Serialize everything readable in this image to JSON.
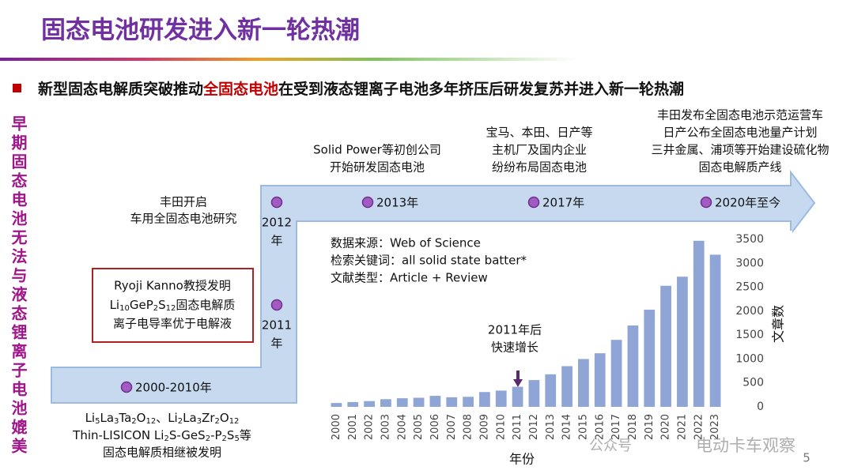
{
  "title": "固态电池研发进入新一轮热潮",
  "bullet": {
    "parts": [
      "新型固态电解质突破推动",
      "全固态电池",
      "在受到液态锂离子电池多年挤压后研发复苏并进入新一轮热潮"
    ]
  },
  "side_label": "早期固态电池无法与液态锂离子电池媲美",
  "timeline": {
    "stages": [
      {
        "lines": [
          "2000-2010年"
        ]
      },
      {
        "lines": [
          "2011",
          "年"
        ]
      },
      {
        "lines": [
          "2012",
          "年"
        ]
      },
      {
        "lines": [
          "2013年"
        ]
      },
      {
        "lines": [
          "2017年"
        ]
      },
      {
        "lines": [
          "2020年至今"
        ]
      }
    ],
    "events": {
      "toyota_start": [
        "丰田开启",
        "车用全固态电池研究"
      ],
      "kanno": {
        "line1": "Ryoji Kanno教授发明",
        "formula": [
          {
            "text": "Li"
          },
          {
            "sub": "10"
          },
          {
            "text": "GeP"
          },
          {
            "sub": "2"
          },
          {
            "text": "S"
          },
          {
            "sub": "12"
          },
          {
            "text": "固态电解质"
          }
        ],
        "line3": "离子电导率优于电解液"
      },
      "early": {
        "formula1": [
          {
            "text": "Li"
          },
          {
            "sub": "5"
          },
          {
            "text": "La"
          },
          {
            "sub": "3"
          },
          {
            "text": "Ta"
          },
          {
            "sub": "2"
          },
          {
            "text": "O"
          },
          {
            "sub": "12"
          },
          {
            "text": "、Li"
          },
          {
            "sub": "2"
          },
          {
            "text": "La"
          },
          {
            "sub": "3"
          },
          {
            "text": "Zr"
          },
          {
            "sub": "2"
          },
          {
            "text": "O"
          },
          {
            "sub": "12"
          }
        ],
        "formula2": [
          {
            "text": "Thin-LISICON Li"
          },
          {
            "sub": "2"
          },
          {
            "text": "S-GeS"
          },
          {
            "sub": "2"
          },
          {
            "text": "-P"
          },
          {
            "sub": "2"
          },
          {
            "text": "S"
          },
          {
            "sub": "5"
          },
          {
            "text": "等"
          }
        ],
        "line3": "固态电解质相继被发明"
      },
      "startups": [
        "Solid Power等初创公司",
        "开始研发固态电池"
      ],
      "oems": [
        "宝马、本田、日产等",
        "主机厂及国内企业",
        "纷纷布局固态电池"
      ],
      "recent": [
        "丰田发布全固态电池示范运营车",
        "日产公布全固态电池量产计划",
        "三井金属、浦项等开始建设硫化物",
        "固态电解质产线"
      ]
    }
  },
  "chart_data": {
    "type": "bar",
    "notes": [
      "数据来源：Web of Science",
      "检索关键词：all solid state batter*",
      "文献类型：Article + Review"
    ],
    "annotation": [
      "2011年后",
      "快速增长"
    ],
    "x_label": "年份",
    "y_label": "文章数",
    "categories": [
      "2000",
      "2001",
      "2002",
      "2003",
      "2004",
      "2005",
      "2006",
      "2007",
      "2008",
      "2009",
      "2010",
      "2011",
      "2012",
      "2013",
      "2014",
      "2015",
      "2016",
      "2017",
      "2018",
      "2019",
      "2020",
      "2021",
      "2022",
      "2023"
    ],
    "values": [
      80,
      100,
      120,
      160,
      180,
      190,
      230,
      200,
      210,
      310,
      340,
      420,
      560,
      680,
      850,
      1000,
      1120,
      1400,
      1700,
      2030,
      2530,
      2720,
      3470,
      3180
    ],
    "color": "#8fa5d6",
    "ylim": [
      0,
      3500
    ],
    "yticks": [
      0,
      500,
      1000,
      1500,
      2000,
      2500,
      3000,
      3500
    ]
  },
  "watermark": [
    "公众号",
    "电动卡车观察"
  ],
  "page_number": "5"
}
